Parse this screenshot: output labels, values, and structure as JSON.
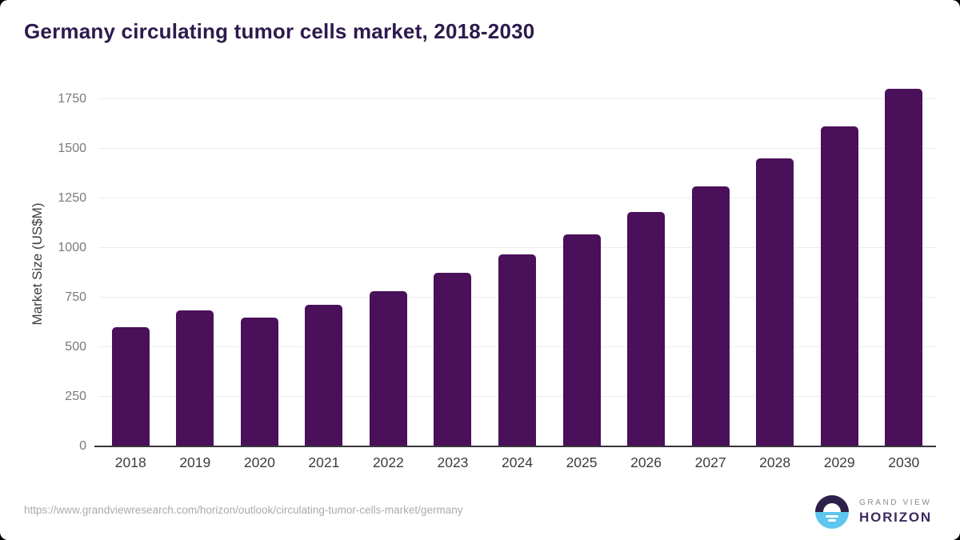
{
  "header": {
    "title": "Germany circulating tumor cells market, 2018-2030"
  },
  "footer": {
    "source_url": "https://www.grandviewresearch.com/horizon/outlook/circulating-tumor-cells-market/germany",
    "logo": {
      "top_text": "GRAND VIEW",
      "bottom_text": "HORIZON"
    }
  },
  "colors": {
    "bar": "#4A105A",
    "title": "#2D1A4D",
    "gridline": "#ECECEC",
    "axis_line": "#38343B",
    "y_tick_label": "#7A7A7A",
    "x_tick_label": "#3C3C3C",
    "url_text": "#ABABAB",
    "logo_purple": "#2E2149",
    "logo_blue": "#5EC6EF",
    "logo_text_purple": "#3B2A5F",
    "logo_text_gray": "#8A8A8A"
  },
  "chart_data": {
    "type": "bar",
    "title": "Germany circulating tumor cells market, 2018-2030",
    "categories": [
      "2018",
      "2019",
      "2020",
      "2021",
      "2022",
      "2023",
      "2024",
      "2025",
      "2026",
      "2027",
      "2028",
      "2029",
      "2030"
    ],
    "values": [
      597,
      680,
      645,
      710,
      780,
      870,
      963,
      1067,
      1180,
      1308,
      1450,
      1610,
      1800
    ],
    "xlabel": "",
    "ylabel": "Market Size (US$M)",
    "ylim": [
      0,
      1840
    ],
    "yticks": [
      0,
      250,
      500,
      750,
      1000,
      1250,
      1500,
      1750
    ],
    "grid": true,
    "legend": false,
    "bar_color": "#4A105A"
  }
}
